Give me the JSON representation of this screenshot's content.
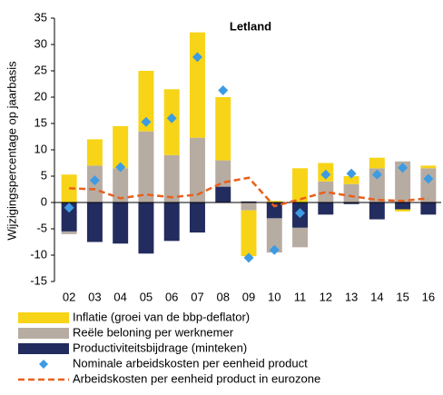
{
  "chart_data": {
    "type": "bar",
    "title": "Letland",
    "y_label": "Wijzigingspercentage op jaarbasis",
    "categories": [
      "02",
      "03",
      "04",
      "05",
      "06",
      "07",
      "08",
      "09",
      "10",
      "11",
      "12",
      "13",
      "14",
      "15",
      "16"
    ],
    "series": [
      {
        "name": "Inflatie (groei van de bbp-deflator)",
        "type": "bar",
        "color": "#f7d417",
        "values": [
          5.3,
          5,
          8,
          11.5,
          12.5,
          20,
          12,
          -8.7,
          0.3,
          6.5,
          3.5,
          1.5,
          2,
          -0.4,
          0.5
        ]
      },
      {
        "name": "Reële beloning per werknemer",
        "type": "bar",
        "color": "#b7aca2",
        "values": [
          -0.5,
          7,
          6.5,
          13.5,
          9,
          12.3,
          5,
          -1.5,
          -6.5,
          -3.7,
          4,
          3.5,
          6.5,
          7.8,
          6.5
        ]
      },
      {
        "name": "Productiviteitsbijdrage (minteken)",
        "type": "bar",
        "color": "#232c5e",
        "values": [
          -5.5,
          -7.5,
          -7.8,
          -9.7,
          -7.3,
          -5.7,
          3,
          0.2,
          -3,
          -4.8,
          -2.3,
          -0.3,
          -3.2,
          -1.3,
          -2.3
        ]
      },
      {
        "name": "Nominale arbeidskosten per eenheid product",
        "type": "scatter",
        "color": "#3d9be3",
        "values": [
          -1,
          4.2,
          6.7,
          15.3,
          16,
          27.6,
          21.3,
          -10.5,
          -9,
          -2,
          5.3,
          5.5,
          5.3,
          6.6,
          4.5
        ]
      },
      {
        "name": "Arbeidskosten per eenheid product in eurozone",
        "type": "line",
        "color": "#e8601c",
        "dashed": true,
        "values": [
          2.7,
          2.5,
          0.8,
          1.5,
          1.0,
          1.5,
          3.8,
          4.7,
          -0.7,
          0.6,
          2.0,
          1.2,
          0.5,
          0.3,
          0.8
        ]
      }
    ],
    "ylim": [
      -15,
      35
    ],
    "yticks": [
      -15,
      -10,
      -5,
      0,
      5,
      10,
      15,
      20,
      25,
      30,
      35
    ]
  }
}
